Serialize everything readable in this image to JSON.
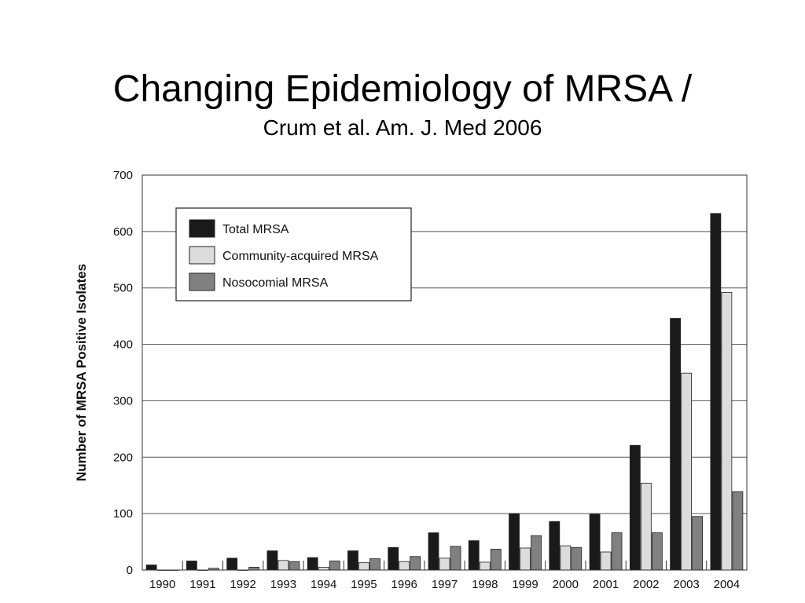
{
  "slide": {
    "title": "Changing Epidemiology of MRSA /",
    "subtitle": "Crum et al. Am. J. Med 2006"
  },
  "chart_data": {
    "type": "bar",
    "title": "",
    "xlabel": "",
    "ylabel": "Number of MRSA Positive Isolates",
    "ylim": [
      0,
      700
    ],
    "yticks": [
      0,
      100,
      200,
      300,
      400,
      500,
      600,
      700
    ],
    "grid": "horizontal",
    "legend_position": "top-left",
    "categories": [
      "1990",
      "1991",
      "1992",
      "1993",
      "1994",
      "1995",
      "1996",
      "1997",
      "1998",
      "1999",
      "2000",
      "2001",
      "2002",
      "2003",
      "2004"
    ],
    "series": [
      {
        "name": "Total MRSA",
        "color": "#1a1a1a",
        "values": [
          9,
          16,
          21,
          34,
          22,
          34,
          40,
          66,
          52,
          100,
          86,
          99,
          221,
          446,
          632
        ]
      },
      {
        "name": "Community-acquired MRSA",
        "color": "#dcdcdc",
        "values": [
          0,
          0,
          0,
          17,
          5,
          13,
          15,
          21,
          14,
          39,
          43,
          32,
          154,
          349,
          492
        ]
      },
      {
        "name": "Nosocomial MRSA",
        "color": "#808080",
        "values": [
          0,
          3,
          5,
          15,
          16,
          20,
          24,
          42,
          37,
          61,
          40,
          66,
          66,
          95,
          139
        ]
      }
    ]
  }
}
